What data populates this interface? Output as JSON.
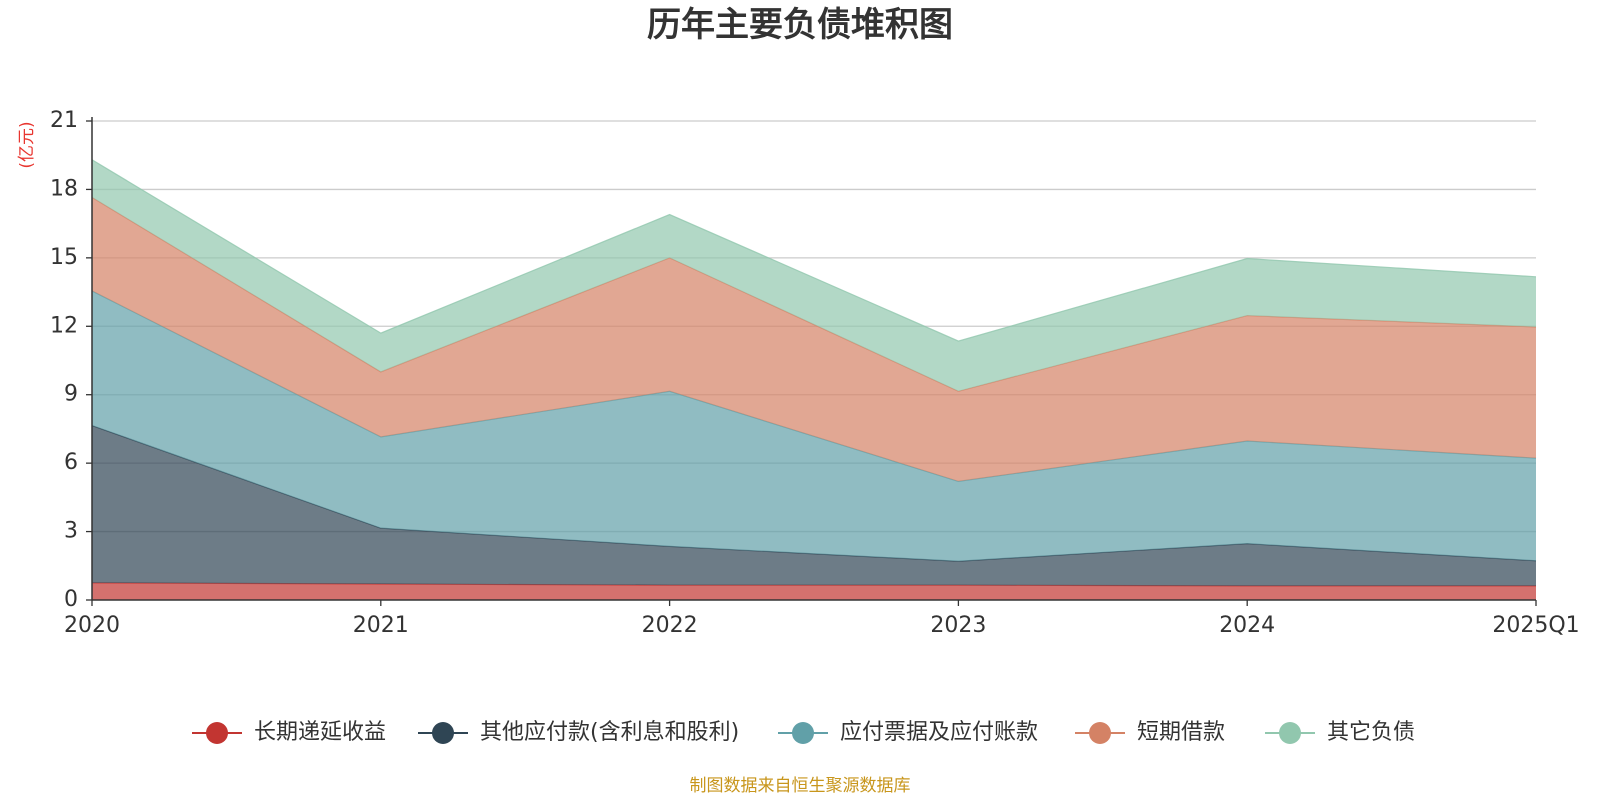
{
  "chart_data": {
    "type": "area",
    "stacked": true,
    "title": "历年主要负债堆积图",
    "unit_label": "(亿元)",
    "categories": [
      "2020",
      "2021",
      "2022",
      "2023",
      "2024",
      "2025Q1"
    ],
    "ylim": [
      0,
      21
    ],
    "yticks": [
      0,
      3,
      6,
      9,
      12,
      15,
      18,
      21
    ],
    "grid": true,
    "legend_position": "bottom",
    "series": [
      {
        "name": "长期递延收益",
        "color": "#c23531",
        "values": [
          0.75,
          0.7,
          0.65,
          0.65,
          0.62,
          0.62
        ]
      },
      {
        "name": "其他应付款(含利息和股利)",
        "color": "#2f4554",
        "values": [
          6.9,
          2.45,
          1.7,
          1.05,
          1.85,
          1.1
        ]
      },
      {
        "name": "应付票据及应付账款",
        "color": "#61a0a8",
        "values": [
          5.9,
          4.0,
          6.8,
          3.5,
          4.5,
          4.5
        ]
      },
      {
        "name": "短期借款",
        "color": "#d48265",
        "values": [
          4.1,
          2.85,
          5.85,
          3.95,
          5.5,
          5.75
        ]
      },
      {
        "name": "其它负债",
        "color": "#91c7ae",
        "values": [
          1.65,
          1.7,
          1.9,
          2.2,
          2.5,
          2.2
        ]
      }
    ]
  },
  "footer": {
    "source": "制图数据来自恒生聚源数据库"
  }
}
